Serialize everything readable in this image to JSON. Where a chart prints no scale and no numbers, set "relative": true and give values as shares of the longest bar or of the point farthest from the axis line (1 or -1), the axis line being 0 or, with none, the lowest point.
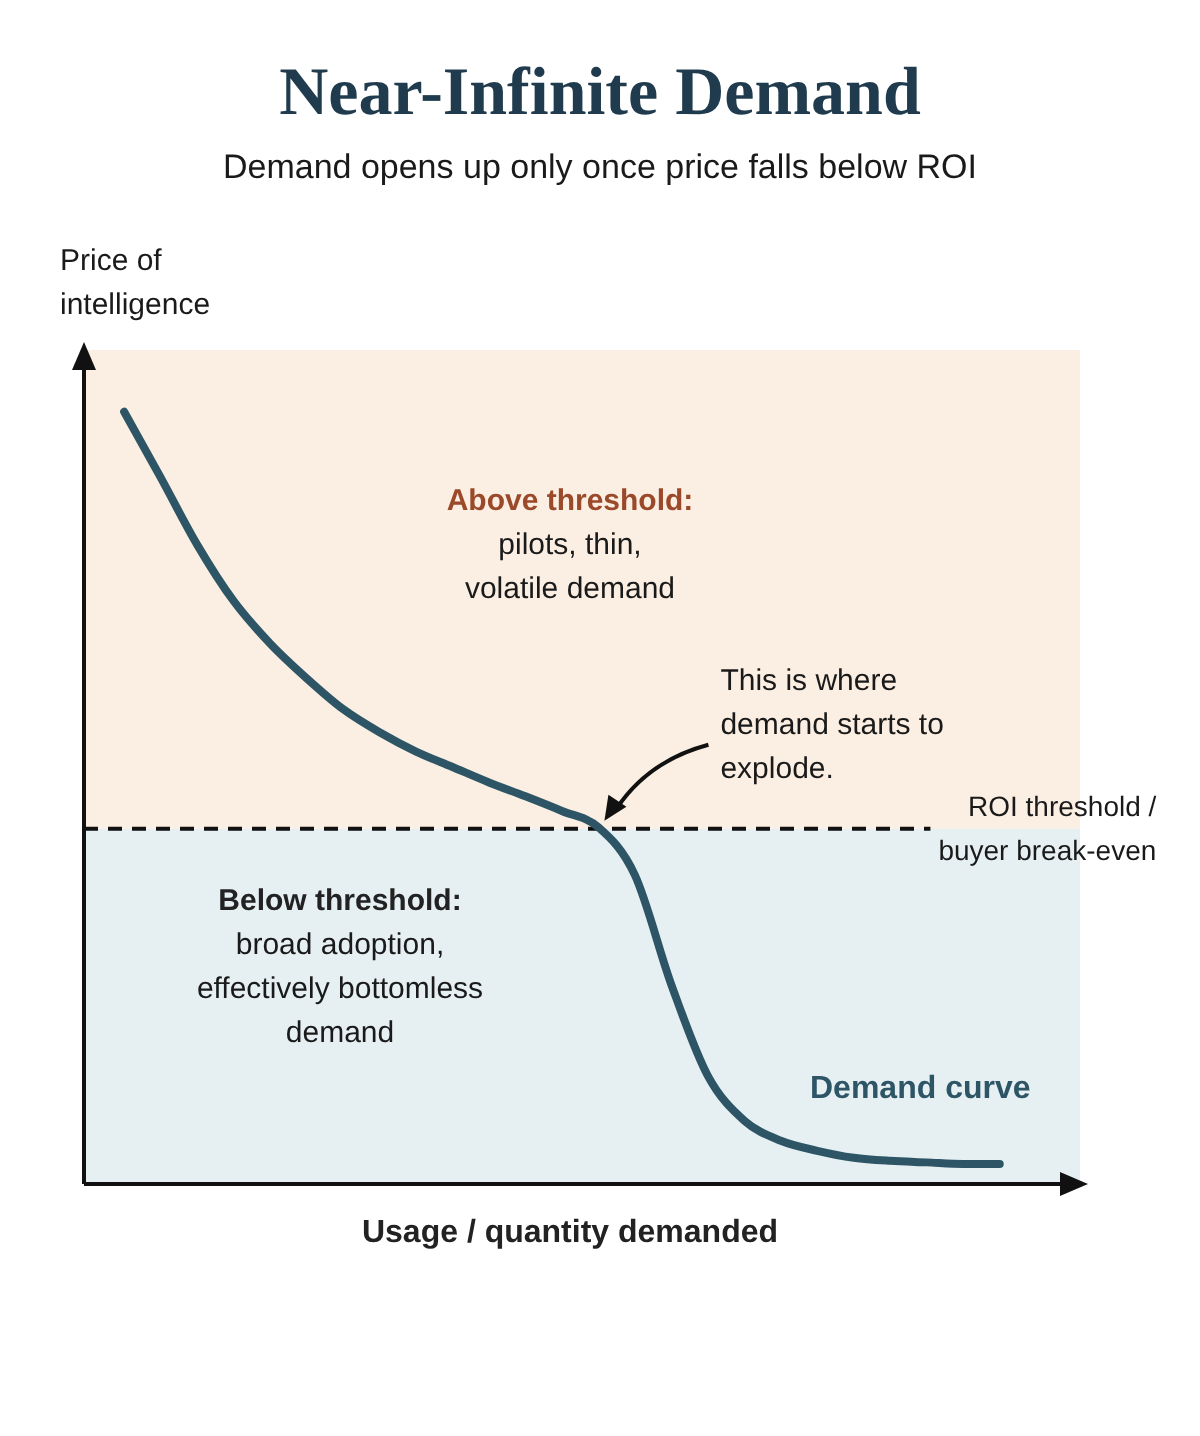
{
  "chart_data": {
    "type": "line",
    "title": "Near-Infinite Demand",
    "subtitle": "Demand opens up only once price falls below ROI",
    "xlabel": "Usage / quantity demanded",
    "ylabel": "Price of\nintelligence",
    "relative": true,
    "marker": "none",
    "line_style": "solid",
    "categories": [
      null,
      null,
      null,
      null,
      null,
      null,
      null,
      null,
      null,
      null,
      null,
      null,
      null,
      null,
      null,
      null,
      null,
      null,
      null,
      null,
      null,
      null,
      null,
      null,
      null
    ],
    "series": [
      {
        "name": "Demand curve",
        "color": "#2d5566",
        "values": [
          1.0,
          0.915,
          0.828,
          0.755,
          0.7,
          0.655,
          0.615,
          0.585,
          0.56,
          0.54,
          0.52,
          0.502,
          0.483,
          0.462,
          0.4,
          0.258,
          0.14,
          0.082,
          0.056,
          0.043,
          0.034,
          0.03,
          0.028,
          0.026,
          0.026
        ]
      }
    ],
    "ref_lines": [
      {
        "axis": "y",
        "value": 0.46,
        "label": "ROI threshold /\nbuyer break-even",
        "line_style": "dashed",
        "color": "#111111"
      }
    ],
    "bands": [
      {
        "axis": "y",
        "from": 0.46,
        "to": 1.08,
        "label": "Above threshold:\npilots, thin,\nvolatile demand",
        "color": "#fbeee2"
      },
      {
        "axis": "y",
        "from": 0,
        "to": 0.46,
        "label": "Below threshold:\nbroad adoption,\neffectively bottomless\ndemand",
        "color": "#e6f0f3"
      }
    ],
    "annotations": [
      "This is where\ndemand starts to\nexplode."
    ]
  }
}
